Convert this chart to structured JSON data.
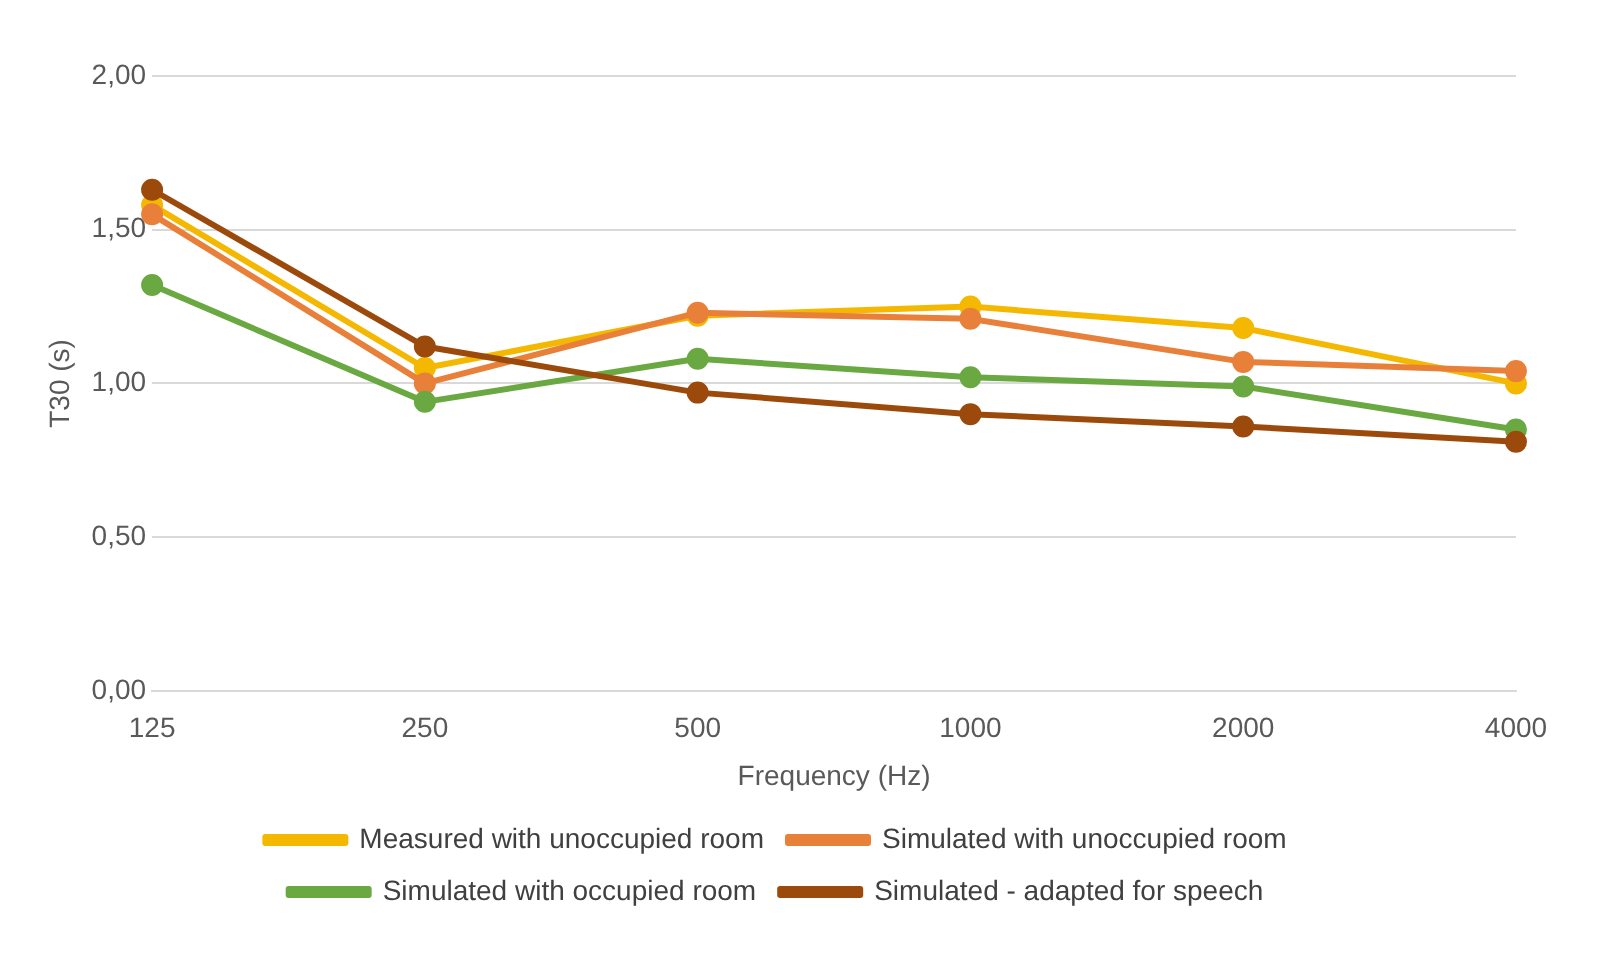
{
  "chart_data": {
    "type": "line",
    "xlabel": "Frequency (Hz)",
    "ylabel": "T30 (s)",
    "categories": [
      "125",
      "250",
      "500",
      "1000",
      "2000",
      "4000"
    ],
    "series": [
      {
        "name": "Measured with unoccupied room",
        "color": "#f5b800",
        "values": [
          1.58,
          1.05,
          1.22,
          1.25,
          1.18,
          1.0
        ]
      },
      {
        "name": "Simulated with unoccupied room",
        "color": "#e8803a",
        "values": [
          1.55,
          1.0,
          1.23,
          1.21,
          1.07,
          1.04
        ]
      },
      {
        "name": "Simulated with occupied room",
        "color": "#6aa842",
        "values": [
          1.32,
          0.94,
          1.08,
          1.02,
          0.99,
          0.85
        ]
      },
      {
        "name": "Simulated - adapted for speech",
        "color": "#9c4a0c",
        "values": [
          1.63,
          1.12,
          0.97,
          0.9,
          0.86,
          0.81
        ]
      }
    ],
    "ylim": [
      0,
      2
    ],
    "yticks": [
      {
        "value": 0,
        "label": "0,00"
      },
      {
        "value": 0.5,
        "label": "0,50"
      },
      {
        "value": 1,
        "label": "1,00"
      },
      {
        "value": 1.5,
        "label": "1,50"
      },
      {
        "value": 2,
        "label": "2,00"
      }
    ],
    "grid": "y",
    "legend": "bottom",
    "marker": "circle",
    "line_style": "solid"
  }
}
